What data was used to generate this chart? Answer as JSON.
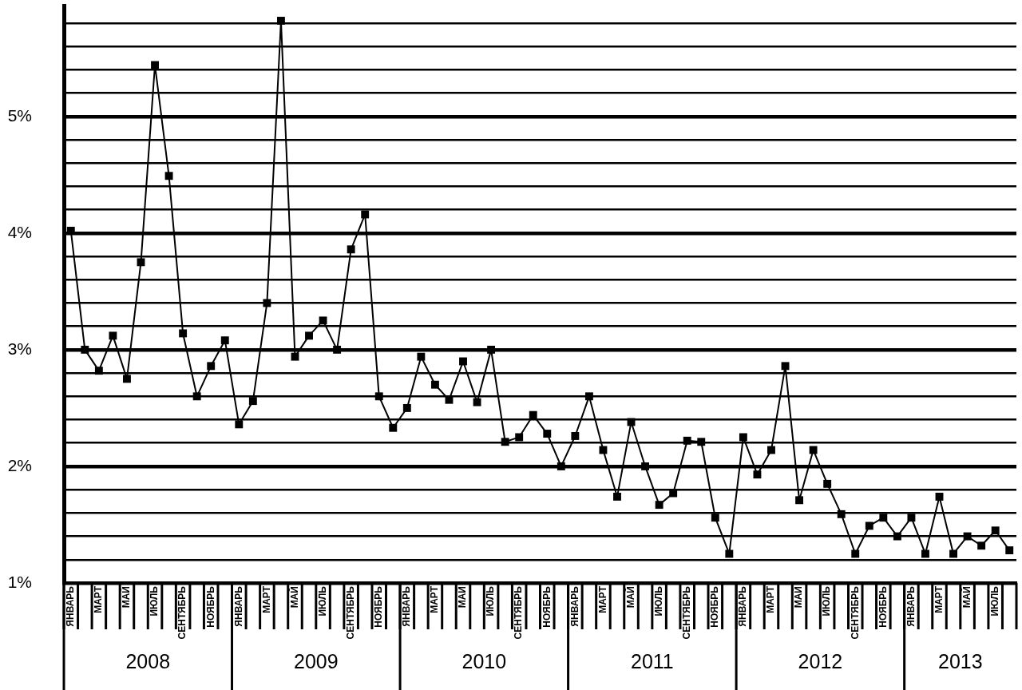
{
  "chart_data": {
    "type": "line",
    "categories": [
      "ЯНВАРЬ",
      null,
      "МАРТ",
      null,
      "МАЙ",
      null,
      "ИЮЛЬ",
      null,
      "СЕНТЯБРЬ",
      null,
      "НОЯБРЬ",
      null,
      "ЯНВАРЬ",
      null,
      "МАРТ",
      null,
      "МАЙ",
      null,
      "ИЮЛЬ",
      null,
      "СЕНТЯБРЬ",
      null,
      "НОЯБРЬ",
      null,
      "ЯНВАРЬ",
      null,
      "МАРТ",
      null,
      "МАЙ",
      null,
      "ИЮЛЬ",
      null,
      "СЕНТЯБРЬ",
      null,
      "НОЯБРЬ",
      null,
      "ЯНВАРЬ",
      null,
      "МАРТ",
      null,
      "МАЙ",
      null,
      "ИЮЛЬ",
      null,
      "СЕНТЯБРЬ",
      null,
      "НОЯБРЬ",
      null,
      "ЯНВАРЬ",
      null,
      "МАРТ",
      null,
      "МАЙ",
      null,
      "ИЮЛЬ",
      null,
      "СЕНТЯБРЬ",
      null,
      "НОЯБРЬ",
      null,
      "ЯНВАРЬ",
      null,
      "МАРТ",
      null,
      "МАЙ",
      null,
      "ИЮЛЬ",
      null
    ],
    "values": [
      4.02,
      3.0,
      2.82,
      3.12,
      2.75,
      3.75,
      5.44,
      4.49,
      3.14,
      2.6,
      2.86,
      3.08,
      2.36,
      2.56,
      3.4,
      5.82,
      2.94,
      3.12,
      3.25,
      3.0,
      3.86,
      4.16,
      2.6,
      2.33,
      2.5,
      2.94,
      2.7,
      2.57,
      2.9,
      2.55,
      3.0,
      2.21,
      2.25,
      2.44,
      2.28,
      2.0,
      2.26,
      2.6,
      2.14,
      1.74,
      2.38,
      2.0,
      1.67,
      1.77,
      2.22,
      2.21,
      1.56,
      1.25,
      2.25,
      1.93,
      2.14,
      2.86,
      1.71,
      2.14,
      1.85,
      1.59,
      1.25,
      1.49,
      1.56,
      1.4,
      1.56,
      1.25,
      1.74,
      1.25,
      1.4,
      1.32,
      1.45,
      1.28
    ],
    "color": "#000000",
    "marker": "square",
    "line_style": "solid",
    "ylim": [
      1,
      5.95
    ],
    "yticks": [
      {
        "value": 1,
        "label": "1%"
      },
      {
        "value": 1.2,
        "label": null
      },
      {
        "value": 1.4,
        "label": null
      },
      {
        "value": 1.6,
        "label": null
      },
      {
        "value": 1.8,
        "label": null
      },
      {
        "value": 2,
        "label": "2%"
      },
      {
        "value": 2.2,
        "label": null
      },
      {
        "value": 2.4,
        "label": null
      },
      {
        "value": 2.6,
        "label": null
      },
      {
        "value": 2.8,
        "label": null
      },
      {
        "value": 3,
        "label": "3%"
      },
      {
        "value": 3.2,
        "label": null
      },
      {
        "value": 3.4,
        "label": null
      },
      {
        "value": 3.6,
        "label": null
      },
      {
        "value": 3.8,
        "label": null
      },
      {
        "value": 4,
        "label": "4%"
      },
      {
        "value": 4.2,
        "label": null
      },
      {
        "value": 4.4,
        "label": null
      },
      {
        "value": 4.6,
        "label": null
      },
      {
        "value": 4.8,
        "label": null
      },
      {
        "value": 5,
        "label": "5%"
      },
      {
        "value": 5.2,
        "label": null
      },
      {
        "value": 5.4,
        "label": null
      },
      {
        "value": 5.6,
        "label": null
      },
      {
        "value": 5.8,
        "label": null
      }
    ],
    "grid": "y",
    "annotations": [
      "2008",
      "2009",
      "2010",
      "2011",
      "2012",
      "2013"
    ]
  }
}
